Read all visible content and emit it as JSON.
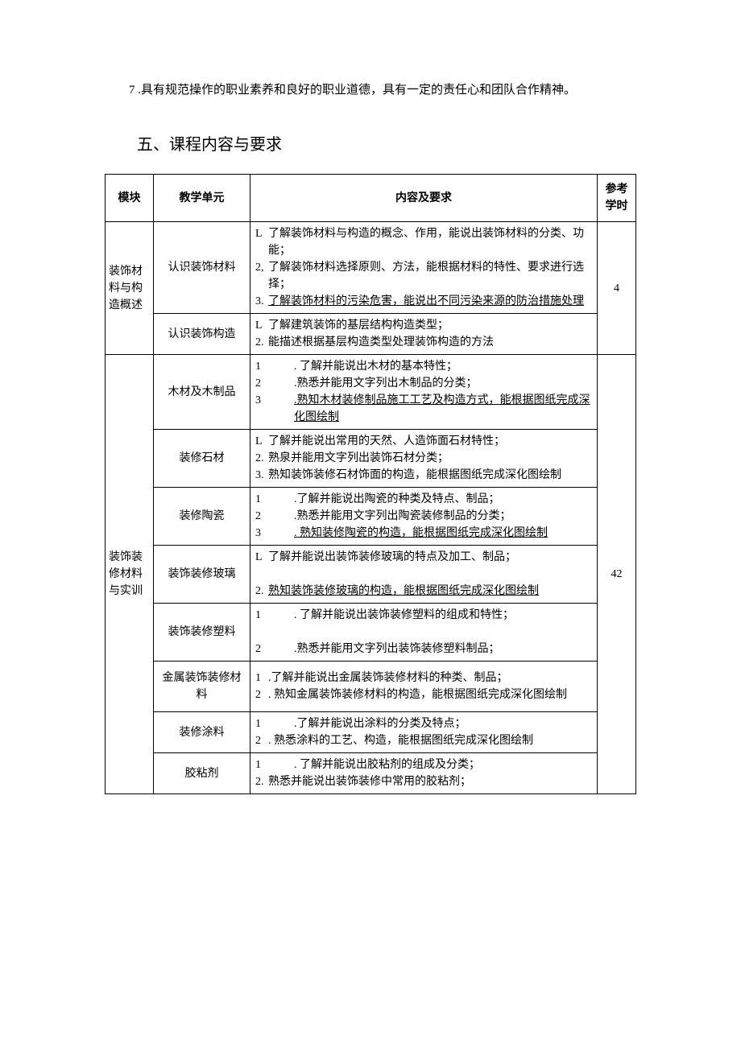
{
  "intro": "7 .具有规范操作的职业素养和良好的职业道德，具有一定的责任心和团队合作精神。",
  "section_title": "五、课程内容与要求",
  "headers": {
    "module": "模块",
    "unit": "教学单元",
    "content": "内容及要求",
    "hours": "参考学时"
  },
  "module1": {
    "name": "装饰材料与构造概述",
    "hours": "4",
    "units": [
      {
        "name": "认识装饰材料",
        "items": [
          {
            "num": "L",
            "text": "了解装饰材料与构造的概念、作用，能说出装饰材料的分类、功能；",
            "indent": true
          },
          {
            "num": "2,",
            "text": "了解装饰材料选择原则、方法，能根据材料的特性、要求进行选择；",
            "indent": true
          },
          {
            "num": "3.",
            "text": "了解装饰材料的污染危害，能说出不同污染来源的防治措施处理",
            "indent": true,
            "underline": true
          }
        ]
      },
      {
        "name": "认识装饰构造",
        "items": [
          {
            "num": "L",
            "text": "了解建筑装饰的基层结构构造类型；"
          },
          {
            "num": "2.",
            "text": "能描述根据基层构造类型处理装饰构造的方法"
          }
        ]
      }
    ]
  },
  "module2": {
    "name": "装饰装修材料与实训",
    "hours": "42",
    "units": [
      {
        "name": "木材及木制品",
        "items": [
          {
            "wide": "1",
            "text": ". 了解并能说出木材的基本特性；"
          },
          {
            "wide": "2",
            "text": ".熟悉并能用文字列出木制品的分类；"
          },
          {
            "wide": "3",
            "text": ".熟知木材装修制品施工工艺及构造方式，能根据图纸完成深化图绘制",
            "underline": true
          }
        ]
      },
      {
        "name": "装修石材",
        "items": [
          {
            "num": "L",
            "text": "了解并能说出常用的天然、人造饰面石材特性；"
          },
          {
            "num": "2.",
            "text": "熟泉并能用文字列出装饰石材分类；"
          },
          {
            "num": "3.",
            "text": "熟知装饰装修石材饰面的构造，能根据图纸完成深化图绘制",
            "indent": true
          }
        ]
      },
      {
        "name": "装修陶瓷",
        "items": [
          {
            "wide": "1",
            "text": ".了解并能说出陶瓷的种类及特点、制品；"
          },
          {
            "wide": "2",
            "text": ".熟悉并能用文字列出陶瓷装修制品的分类；"
          },
          {
            "wide": "3",
            "text": ". 熟知装修陶瓷的构造，能根据图纸完成深化图绘制",
            "underline": true
          }
        ]
      },
      {
        "name": "装饰装修玻璃",
        "items": [
          {
            "num": "L",
            "text": "了解并能说出装饰装修玻璃的特点及加工、制品；"
          },
          {
            "blank": true
          },
          {
            "num": "2.",
            "text": "熟知装饰装修玻璃的构造，能根据图纸完成深化图绘制",
            "underline": true
          }
        ]
      },
      {
        "name": "装饰装修塑料",
        "items": [
          {
            "wide": "1",
            "text": ". 了解并能说出装饰装修塑料的组成和特性；"
          },
          {
            "blank": true
          },
          {
            "wide": "2",
            "text": ".熟悉并能用文字列出装饰装修塑料制品；"
          }
        ]
      },
      {
        "name": "金属装饰装修材料",
        "items": [
          {
            "num": "1",
            "text": ".了解并能说出金属装饰装修材料的种类、制品；"
          },
          {
            "num": "2",
            "text": ". 熟知金属装饰装修材料的构造，能根据图纸完成深化图绘制",
            "indent": true
          }
        ]
      },
      {
        "name": "装修涂料",
        "items": [
          {
            "wide": "1",
            "text": ".了解并能说出涂料的分类及特点；"
          },
          {
            "num": "2",
            "text": ". 熟悉涂料的工艺、构造，能根据图纸完成深化图绘制",
            "indent": true
          }
        ]
      },
      {
        "name": "胶粘剂",
        "items": [
          {
            "wide": "1",
            "text": ". 了解并能说出胶粘剂的组成及分类；"
          },
          {
            "num": "2.",
            "text": "熟悉并能说出装饰装修中常用的胶粘剂；"
          }
        ]
      }
    ]
  }
}
